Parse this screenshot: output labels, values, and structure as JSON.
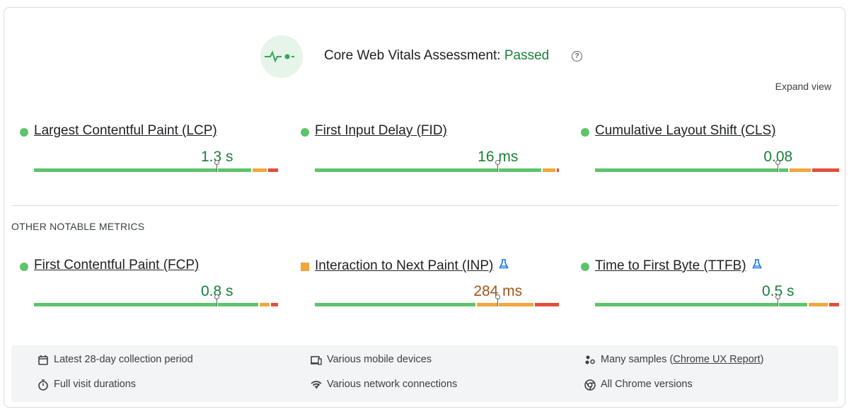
{
  "header": {
    "title": "Core Web Vitals Assessment:",
    "status": "Passed",
    "help": "?",
    "expand": "Expand view"
  },
  "core_metrics": [
    {
      "name": "Largest Contentful Paint (LCP)",
      "value": "1.3 s",
      "color": "#188038",
      "marker": "dot",
      "experimental": false,
      "distribution": [
        89,
        6,
        4
      ]
    },
    {
      "name": "First Input Delay (FID)",
      "value": "16 ms",
      "color": "#188038",
      "marker": "dot",
      "experimental": false,
      "distribution": [
        93,
        5,
        1
      ]
    },
    {
      "name": "Cumulative Layout Shift (CLS)",
      "value": "0.08",
      "color": "#188038",
      "marker": "dot",
      "experimental": false,
      "distribution": [
        80,
        9,
        11
      ]
    }
  ],
  "section_label": "OTHER NOTABLE METRICS",
  "other_metrics": [
    {
      "name": "First Contentful Paint (FCP)",
      "value": "0.8 s",
      "color": "#188038",
      "marker": "dot",
      "experimental": false,
      "distribution": [
        93,
        4,
        3
      ]
    },
    {
      "name": "Interaction to Next Paint (INP)",
      "value": "284 ms",
      "color": "#a0561c",
      "marker": "square",
      "experimental": true,
      "distribution": [
        66,
        23,
        10
      ]
    },
    {
      "name": "Time to First Byte (TTFB)",
      "value": "0.5 s",
      "color": "#188038",
      "marker": "dot",
      "experimental": true,
      "distribution": [
        88,
        8,
        4
      ]
    }
  ],
  "footer": {
    "items": [
      {
        "icon": "calendar",
        "text": "Latest 28-day collection period"
      },
      {
        "icon": "timer",
        "text": "Full visit durations"
      },
      {
        "icon": "devices",
        "text": "Various mobile devices"
      },
      {
        "icon": "network",
        "text": "Various network connections"
      },
      {
        "icon": "samples",
        "text": "Many samples (",
        "link": "Chrome UX Report",
        "suffix": ")"
      },
      {
        "icon": "chrome",
        "text": "All Chrome versions"
      }
    ]
  }
}
